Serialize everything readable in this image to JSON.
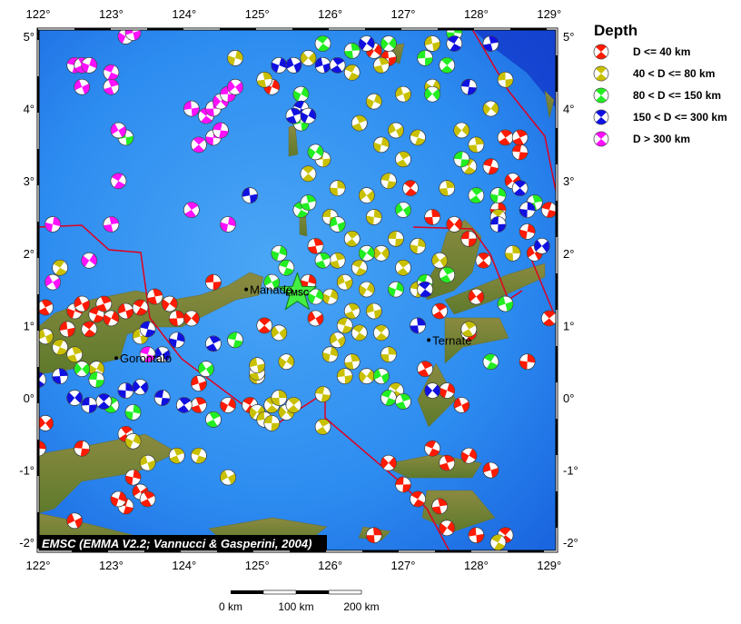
{
  "map": {
    "extent": {
      "lon": [
        122,
        129.1
      ],
      "lat": [
        -2.1,
        5.1
      ]
    },
    "lon_ticks": [
      "122°",
      "123°",
      "124°",
      "125°",
      "126°",
      "127°",
      "128°",
      "129°"
    ],
    "lat_ticks": [
      "5°",
      "4°",
      "3°",
      "2°",
      "1°",
      "0°",
      "-1°",
      "-2°"
    ],
    "credit": "EMSC (EMMA V2.2; Vannucci & Gasperini, 2004)",
    "cities": [
      {
        "name": "Manado",
        "lon": 124.85,
        "lat": 1.5
      },
      {
        "name": "Gorontalo",
        "lon": 123.07,
        "lat": 0.55
      },
      {
        "name": "Ternate",
        "lon": 127.35,
        "lat": 0.8
      }
    ],
    "emsc_marker": {
      "label": "EMSC",
      "lon": 125.55,
      "lat": 1.45,
      "color": "#44ee44"
    },
    "scale_bar": {
      "labels": [
        "0 km",
        "100 km",
        "200 km"
      ]
    }
  },
  "legend": {
    "title": "Depth",
    "items": [
      {
        "label": "D <= 40 km",
        "color": "#ff1a00"
      },
      {
        "label": "40 < D <= 80 km",
        "color": "#c8c000"
      },
      {
        "label": "80 < D <= 150 km",
        "color": "#22ee22"
      },
      {
        "label": "150 < D <= 300 km",
        "color": "#1010e0"
      },
      {
        "label": "D > 300 km",
        "color": "#ff10ff"
      }
    ]
  },
  "events": {
    "d0_40": [
      [
        122.1,
        1.25
      ],
      [
        122.5,
        1.2
      ],
      [
        122.6,
        1.3
      ],
      [
        122.8,
        1.15
      ],
      [
        122.9,
        1.3
      ],
      [
        123.0,
        1.1
      ],
      [
        123.2,
        1.2
      ],
      [
        123.4,
        1.25
      ],
      [
        123.6,
        1.4
      ],
      [
        123.8,
        1.3
      ],
      [
        122.4,
        0.95
      ],
      [
        122.7,
        0.95
      ],
      [
        123.9,
        1.1
      ],
      [
        124.1,
        1.1
      ],
      [
        124.4,
        1.6
      ],
      [
        125.1,
        1.0
      ],
      [
        122.0,
        -0.7
      ],
      [
        122.1,
        -0.35
      ],
      [
        122.6,
        -0.7
      ],
      [
        123.2,
        -0.5
      ],
      [
        123.3,
        -1.1
      ],
      [
        123.4,
        -1.3
      ],
      [
        123.2,
        -1.5
      ],
      [
        123.5,
        -1.4
      ],
      [
        123.1,
        -1.4
      ],
      [
        122.5,
        -1.7
      ],
      [
        124.7,
        -2.05
      ],
      [
        124.2,
        -0.1
      ],
      [
        124.6,
        -0.1
      ],
      [
        124.2,
        0.2
      ],
      [
        124.9,
        -0.1
      ],
      [
        125.8,
        2.1
      ],
      [
        126.6,
        4.8
      ],
      [
        126.8,
        4.7
      ],
      [
        127.1,
        2.9
      ],
      [
        127.4,
        2.5
      ],
      [
        127.7,
        2.4
      ],
      [
        127.9,
        2.2
      ],
      [
        128.1,
        1.9
      ],
      [
        128.3,
        2.6
      ],
      [
        128.5,
        3.0
      ],
      [
        128.6,
        3.4
      ],
      [
        128.4,
        3.6
      ],
      [
        128.7,
        2.3
      ],
      [
        128.8,
        2.0
      ],
      [
        128.2,
        3.2
      ],
      [
        127.3,
        0.4
      ],
      [
        127.6,
        0.1
      ],
      [
        127.8,
        -0.1
      ],
      [
        127.4,
        -0.7
      ],
      [
        127.6,
        -0.9
      ],
      [
        127.9,
        -0.8
      ],
      [
        128.2,
        -1.0
      ],
      [
        127.2,
        -1.4
      ],
      [
        127.5,
        -1.5
      ],
      [
        127.6,
        -1.8
      ],
      [
        128.0,
        -1.9
      ],
      [
        128.4,
        -1.9
      ],
      [
        126.6,
        -1.9
      ],
      [
        126.8,
        -0.9
      ],
      [
        127.0,
        -1.2
      ],
      [
        129.0,
        1.1
      ],
      [
        128.7,
        0.5
      ],
      [
        128.0,
        1.4
      ],
      [
        127.9,
        0.9
      ],
      [
        127.5,
        1.2
      ],
      [
        125.7,
        1.6
      ],
      [
        125.8,
        1.1
      ],
      [
        129.0,
        2.6
      ],
      [
        128.6,
        3.6
      ],
      [
        125.2,
        4.3
      ]
    ],
    "d40_80": [
      [
        122.1,
        0.85
      ],
      [
        122.3,
        0.7
      ],
      [
        122.5,
        0.6
      ],
      [
        122.8,
        0.4
      ],
      [
        123.4,
        0.85
      ],
      [
        122.3,
        1.8
      ],
      [
        125.1,
        4.4
      ],
      [
        125.0,
        -0.2
      ],
      [
        125.1,
        -0.3
      ],
      [
        125.2,
        -0.1
      ],
      [
        125.3,
        0.0
      ],
      [
        125.4,
        -0.2
      ],
      [
        125.2,
        -0.35
      ],
      [
        125.5,
        -0.1
      ],
      [
        125.0,
        0.3
      ],
      [
        125.3,
        0.9
      ],
      [
        125.9,
        0.05
      ],
      [
        125.9,
        -0.4
      ],
      [
        126.0,
        0.6
      ],
      [
        126.1,
        0.8
      ],
      [
        126.2,
        1.0
      ],
      [
        126.3,
        1.2
      ],
      [
        126.0,
        1.4
      ],
      [
        126.2,
        1.6
      ],
      [
        126.4,
        1.8
      ],
      [
        126.1,
        1.9
      ],
      [
        126.5,
        1.5
      ],
      [
        126.6,
        1.2
      ],
      [
        126.4,
        0.9
      ],
      [
        126.3,
        0.5
      ],
      [
        126.5,
        0.3
      ],
      [
        126.2,
        0.3
      ],
      [
        126.7,
        0.9
      ],
      [
        126.8,
        0.6
      ],
      [
        126.7,
        2.0
      ],
      [
        126.9,
        2.2
      ],
      [
        127.0,
        1.8
      ],
      [
        126.6,
        2.5
      ],
      [
        126.5,
        2.8
      ],
      [
        126.8,
        3.0
      ],
      [
        127.0,
        3.3
      ],
      [
        126.7,
        3.5
      ],
      [
        126.9,
        3.7
      ],
      [
        127.2,
        3.6
      ],
      [
        126.4,
        3.8
      ],
      [
        126.6,
        4.1
      ],
      [
        127.0,
        4.2
      ],
      [
        126.3,
        4.5
      ],
      [
        126.7,
        4.6
      ],
      [
        127.4,
        4.3
      ],
      [
        127.4,
        4.9
      ],
      [
        127.9,
        3.2
      ],
      [
        128.0,
        3.5
      ],
      [
        128.2,
        4.0
      ],
      [
        128.4,
        4.4
      ],
      [
        128.3,
        2.5
      ],
      [
        128.5,
        2.0
      ],
      [
        125.7,
        4.7
      ],
      [
        126.0,
        2.5
      ],
      [
        126.3,
        2.2
      ],
      [
        127.2,
        2.1
      ],
      [
        127.5,
        1.9
      ],
      [
        127.2,
        1.5
      ],
      [
        127.9,
        0.95
      ],
      [
        124.7,
        4.7
      ],
      [
        124.6,
        -1.1
      ],
      [
        124.2,
        -0.8
      ],
      [
        123.9,
        -0.8
      ],
      [
        123.3,
        -0.6
      ],
      [
        123.5,
        -0.9
      ],
      [
        128.3,
        -2.0
      ],
      [
        125.0,
        0.35
      ],
      [
        125.4,
        0.5
      ],
      [
        125.0,
        0.45
      ],
      [
        126.9,
        0.1
      ],
      [
        127.6,
        2.9
      ],
      [
        127.8,
        3.7
      ],
      [
        125.9,
        3.3
      ],
      [
        125.7,
        3.1
      ],
      [
        126.1,
        2.9
      ]
    ],
    "d80_150": [
      [
        122.6,
        0.4
      ],
      [
        122.8,
        0.25
      ],
      [
        123.0,
        -0.1
      ],
      [
        123.3,
        -0.2
      ],
      [
        124.3,
        0.4
      ],
      [
        124.7,
        0.8
      ],
      [
        124.4,
        -0.3
      ],
      [
        125.3,
        2.0
      ],
      [
        125.2,
        1.6
      ],
      [
        125.4,
        1.8
      ],
      [
        125.9,
        1.9
      ],
      [
        125.8,
        1.4
      ],
      [
        126.1,
        2.4
      ],
      [
        125.6,
        2.6
      ],
      [
        125.7,
        2.7
      ],
      [
        125.8,
        3.4
      ],
      [
        125.6,
        3.8
      ],
      [
        125.9,
        4.9
      ],
      [
        126.3,
        4.8
      ],
      [
        126.8,
        4.9
      ],
      [
        127.3,
        4.7
      ],
      [
        127.6,
        4.6
      ],
      [
        127.7,
        5.05
      ],
      [
        127.4,
        4.2
      ],
      [
        127.8,
        3.3
      ],
      [
        128.0,
        2.8
      ],
      [
        128.3,
        2.8
      ],
      [
        127.0,
        2.6
      ],
      [
        127.3,
        1.6
      ],
      [
        127.6,
        1.7
      ],
      [
        126.9,
        1.5
      ],
      [
        126.7,
        0.3
      ],
      [
        126.8,
        0.0
      ],
      [
        127.0,
        -0.05
      ],
      [
        125.6,
        4.2
      ],
      [
        128.4,
        1.3
      ],
      [
        128.2,
        0.5
      ],
      [
        128.8,
        2.7
      ],
      [
        126.5,
        2.0
      ],
      [
        123.2,
        3.6
      ]
    ],
    "d150_300": [
      [
        122.0,
        0.25
      ],
      [
        122.3,
        0.3
      ],
      [
        122.5,
        0.0
      ],
      [
        122.7,
        -0.1
      ],
      [
        122.9,
        -0.05
      ],
      [
        123.2,
        0.1
      ],
      [
        123.4,
        0.15
      ],
      [
        123.7,
        0.0
      ],
      [
        124.0,
        -0.1
      ],
      [
        123.9,
        0.8
      ],
      [
        123.7,
        0.6
      ],
      [
        123.5,
        0.95
      ],
      [
        124.4,
        0.75
      ],
      [
        125.3,
        4.6
      ],
      [
        125.5,
        4.6
      ],
      [
        125.6,
        4.0
      ],
      [
        125.5,
        3.9
      ],
      [
        125.7,
        3.9
      ],
      [
        125.9,
        4.6
      ],
      [
        127.7,
        4.9
      ],
      [
        128.2,
        4.9
      ],
      [
        126.5,
        4.9
      ],
      [
        124.9,
        2.8
      ],
      [
        127.3,
        1.5
      ],
      [
        127.2,
        1.0
      ],
      [
        127.4,
        0.1
      ],
      [
        128.3,
        2.4
      ],
      [
        128.6,
        2.9
      ],
      [
        128.7,
        2.6
      ],
      [
        128.9,
        2.1
      ],
      [
        127.9,
        4.3
      ],
      [
        126.1,
        4.6
      ]
    ],
    "d300": [
      [
        122.2,
        2.4
      ],
      [
        122.2,
        1.6
      ],
      [
        122.5,
        4.6
      ],
      [
        122.6,
        4.6
      ],
      [
        122.7,
        4.6
      ],
      [
        122.6,
        4.3
      ],
      [
        123.0,
        4.5
      ],
      [
        123.0,
        4.3
      ],
      [
        123.2,
        5.0
      ],
      [
        123.3,
        5.05
      ],
      [
        123.1,
        3.0
      ],
      [
        123.0,
        2.4
      ],
      [
        122.7,
        1.9
      ],
      [
        124.1,
        4.0
      ],
      [
        124.3,
        3.9
      ],
      [
        124.4,
        4.0
      ],
      [
        124.5,
        4.1
      ],
      [
        124.6,
        4.2
      ],
      [
        124.2,
        3.5
      ],
      [
        124.4,
        3.6
      ],
      [
        124.7,
        4.3
      ],
      [
        124.5,
        3.7
      ],
      [
        124.1,
        2.6
      ],
      [
        124.6,
        2.4
      ],
      [
        123.1,
        3.7
      ],
      [
        123.5,
        0.6
      ]
    ]
  }
}
